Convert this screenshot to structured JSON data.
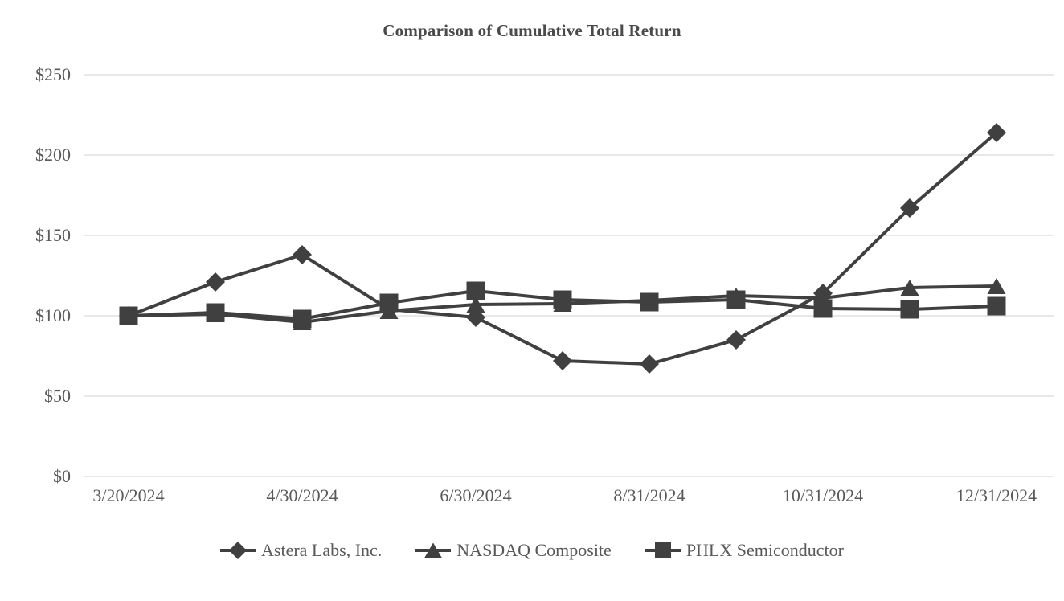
{
  "chart_data": {
    "type": "line",
    "title": "Comparison of Cumulative Total Return",
    "x": [
      "3/20/2024",
      "3/31/2024",
      "4/30/2024",
      "5/31/2024",
      "6/30/2024",
      "7/31/2024",
      "8/31/2024",
      "9/30/2024",
      "10/31/2024",
      "11/30/2024",
      "12/31/2024"
    ],
    "x_tick_indices": [
      0,
      2,
      4,
      6,
      8,
      10
    ],
    "x_tick_labels": [
      "3/20/2024",
      "4/30/2024",
      "6/30/2024",
      "8/31/2024",
      "10/31/2024",
      "12/31/2024"
    ],
    "y_ticks": [
      0,
      50,
      100,
      150,
      200,
      250
    ],
    "y_tick_labels": [
      "$0",
      "$50",
      "$100",
      "$150",
      "$200",
      "$250"
    ],
    "ylim": [
      0,
      250
    ],
    "grid": true,
    "legend_position": "bottom",
    "series": [
      {
        "name": "Astera Labs, Inc.",
        "marker": "diamond",
        "values": [
          100,
          121,
          138,
          104,
          99,
          72,
          70,
          85,
          114,
          167,
          214
        ]
      },
      {
        "name": "NASDAQ Composite",
        "marker": "triangle",
        "values": [
          100,
          101,
          96,
          103,
          107,
          107.5,
          109.5,
          112.5,
          111,
          117.5,
          118.5
        ]
      },
      {
        "name": "PHLX Semiconductor",
        "marker": "square",
        "values": [
          100,
          102,
          98,
          108,
          115.5,
          110,
          108.5,
          110,
          104.5,
          104,
          106
        ]
      }
    ],
    "colors": {
      "series_line": "#404040",
      "marker_fill": "#404040",
      "gridline": "#d9d9d9",
      "axis_text": "#595959",
      "background": "#ffffff"
    }
  }
}
